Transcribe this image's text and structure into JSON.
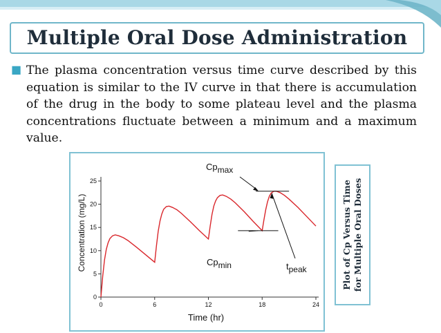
{
  "title": "Multiple Oral Dose Administration",
  "bullet_text": "The plasma concentration versus time curve described by this equation is similar to the IV curve in that there is accumulation of the drug in the body to some plateau level and the plasma concentrations fluctuate between a minimum and a maximum value.",
  "side_caption": {
    "line1": "Plot of Cp Versus Time",
    "line2": "for Multiple Oral Doses"
  },
  "colors": {
    "accent": "#3aa7c4",
    "curve": "#d9262b",
    "frame": "#7fc1d3"
  },
  "chart_data": {
    "type": "line",
    "xlabel": "Time (hr)",
    "ylabel": "Concentration (mg/L)",
    "xlim": [
      0,
      24
    ],
    "ylim": [
      0,
      25
    ],
    "xticks": [
      0,
      6,
      12,
      18,
      24
    ],
    "yticks": [
      0,
      5,
      10,
      15,
      20,
      25
    ],
    "series": [
      {
        "x": [
          0,
          0.2,
          0.4,
          0.6,
          0.8,
          1.0,
          1.3,
          1.6,
          2.0,
          2.5,
          3.0,
          4.0,
          5.0,
          6.0,
          6.2,
          6.4,
          6.6,
          6.8,
          7.0,
          7.3,
          7.6,
          8.0,
          8.5,
          9.0,
          10.0,
          11.0,
          12.0,
          12.2,
          12.4,
          12.6,
          12.8,
          13.0,
          13.3,
          13.6,
          14.0,
          14.5,
          15.0,
          16.0,
          17.0,
          18.0,
          18.2,
          18.4,
          18.6,
          18.8,
          19.0,
          19.3,
          19.6,
          20.0,
          20.5,
          21.0,
          22.0,
          23.0,
          24.0
        ],
        "y": [
          0,
          4.5,
          8.0,
          10.3,
          11.7,
          12.6,
          13.2,
          13.4,
          13.2,
          12.8,
          12.2,
          10.7,
          9.1,
          7.5,
          11.0,
          14.2,
          16.4,
          17.9,
          18.9,
          19.5,
          19.6,
          19.3,
          18.8,
          18.0,
          16.2,
          14.3,
          12.5,
          15.3,
          17.8,
          19.6,
          20.7,
          21.4,
          21.9,
          22.0,
          21.7,
          21.1,
          20.3,
          18.4,
          16.3,
          14.3,
          16.6,
          18.8,
          20.5,
          21.7,
          22.4,
          22.8,
          22.8,
          22.5,
          21.9,
          21.1,
          19.3,
          17.3,
          15.3
        ]
      }
    ],
    "annotations": {
      "cpmax_base": "Cp",
      "cpmax_sub": "max",
      "cpmin_base": "Cp",
      "cpmin_sub": "min",
      "tpeak_base": "t",
      "tpeak_sub": "peak"
    }
  }
}
